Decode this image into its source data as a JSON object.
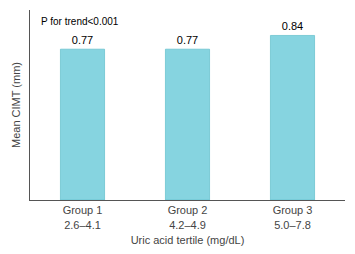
{
  "chart_data": {
    "type": "bar",
    "categories": [
      "Group 1\n2.6–4.1",
      "Group 2\n4.2–4.9",
      "Group 3\n5.0–7.8"
    ],
    "values": [
      0.77,
      0.77,
      0.84
    ],
    "color": "#86d4e0",
    "xlabel": "Uric acid tertile (mg/dL)",
    "ylabel": "Mean CIMT (mm)",
    "annotation": "P for trend<0.001",
    "ylim": [
      0.0,
      0.97
    ],
    "yticks": [],
    "tick_labels": "x",
    "grid": false,
    "data_labels": true
  }
}
